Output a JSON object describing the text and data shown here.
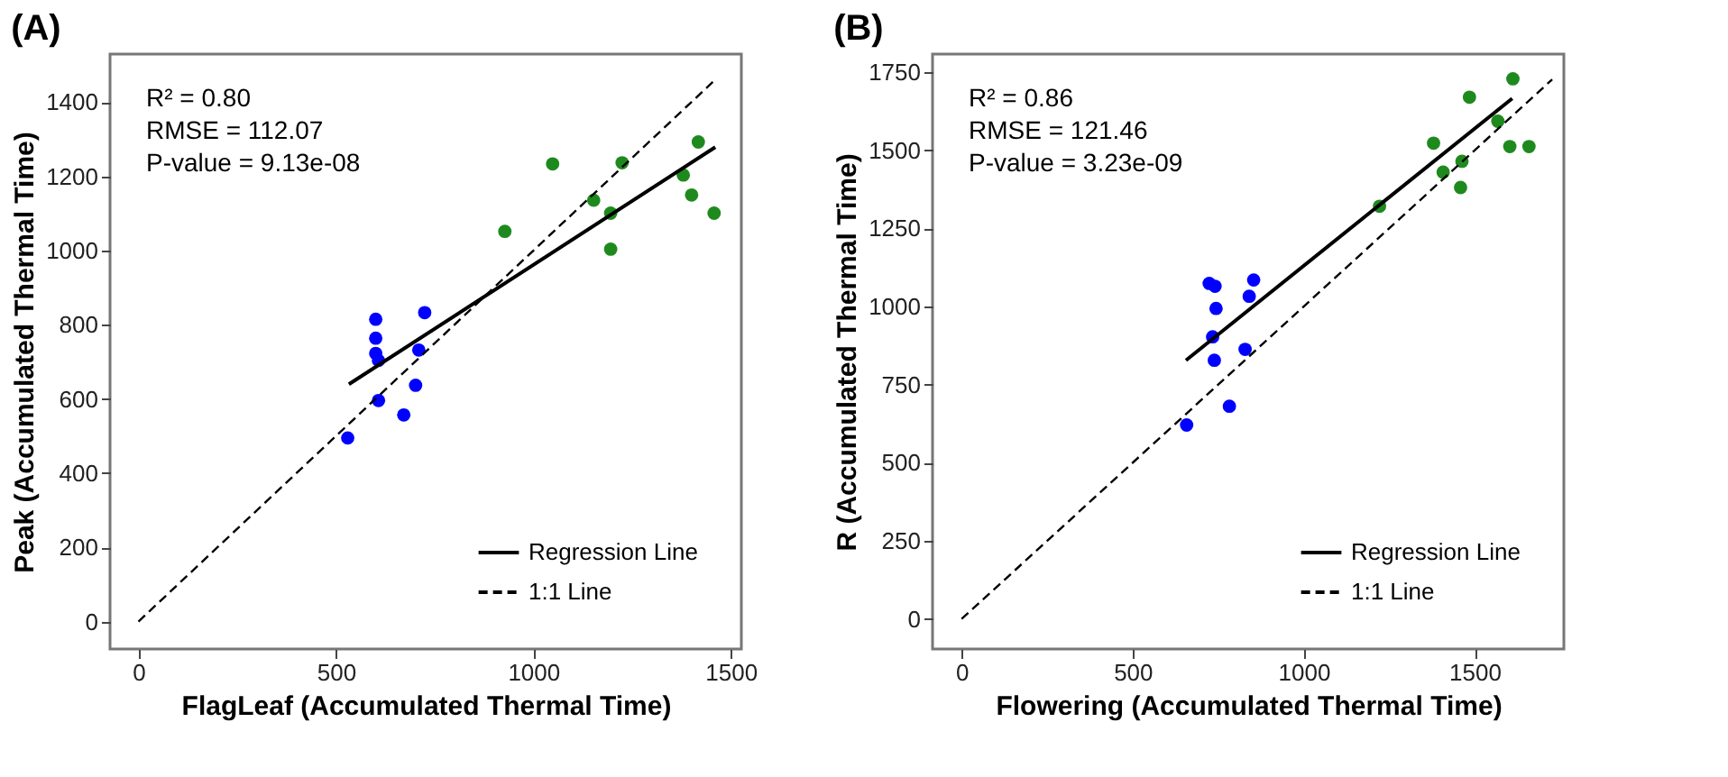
{
  "chart_data": [
    {
      "type": "scatter",
      "title": "(A)",
      "xlabel": "FlagLeaf (Accumulated Thermal Time)",
      "ylabel": "Peak (Accumulated Thermal Time)",
      "annotations": [
        "R² = 0.80",
        "RMSE = 112.07",
        "P-value = 9.13e-08"
      ],
      "xlim": [
        -72,
        1527
      ],
      "ylim": [
        -74,
        1530
      ],
      "xticks": [
        0,
        500,
        1000,
        1500
      ],
      "yticks": [
        0,
        200,
        400,
        600,
        800,
        1000,
        1200,
        1400
      ],
      "grid": false,
      "legend": "bottom right",
      "marker": "circle",
      "series": [
        {
          "color": "#0000ff",
          "x": [
            530,
            601,
            601,
            601,
            608,
            608,
            672,
            702,
            710,
            725
          ],
          "values": [
            495,
            815,
            764,
            723,
            704,
            596,
            557,
            637,
            732,
            833
          ]
        },
        {
          "color": "#1e8a1e",
          "x": [
            928,
            1049,
            1153,
            1196,
            1196,
            1225,
            1380,
            1401,
            1418,
            1458
          ],
          "values": [
            1052,
            1234,
            1136,
            1101,
            1004,
            1237,
            1204,
            1150,
            1293,
            1101
          ]
        },
        {
          "type": "line",
          "name": "Regression Line",
          "color": "#000000",
          "line_style": "solid",
          "marker": "none",
          "x": [
            533,
            1461
          ],
          "values": [
            640,
            1279
          ]
        },
        {
          "type": "line",
          "name": "1:1 Line",
          "color": "#000000",
          "line_style": "dashed",
          "marker": "none",
          "x": [
            0,
            1455
          ],
          "values": [
            0,
            1455
          ]
        }
      ]
    },
    {
      "type": "scatter",
      "title": "(B)",
      "xlabel": "Flowering (Accumulated Thermal Time)",
      "ylabel": "R (Accumulated Thermal Time)",
      "annotations": [
        "R² = 0.86",
        "RMSE = 121.46",
        "P-value = 3.23e-09"
      ],
      "xlim": [
        -85,
        1761
      ],
      "ylim": [
        -96,
        1808
      ],
      "xticks": [
        0,
        500,
        1000,
        1500
      ],
      "yticks": [
        0,
        250,
        500,
        750,
        1000,
        1250,
        1500,
        1750
      ],
      "grid": false,
      "legend": "bottom right",
      "marker": "circle",
      "series": [
        {
          "color": "#0000ff",
          "x": [
            658,
            724,
            741,
            744,
            734,
            739,
            783,
            829,
            841,
            854
          ],
          "values": [
            621,
            1074,
            1065,
            994,
            903,
            828,
            681,
            863,
            1033,
            1085
          ]
        },
        {
          "color": "#1e8a1e",
          "x": [
            1222,
            1380,
            1408,
            1459,
            1463,
            1485,
            1568,
            1603,
            1612,
            1659
          ],
          "values": [
            1321,
            1523,
            1430,
            1381,
            1465,
            1670,
            1593,
            1512,
            1729,
            1512
          ]
        },
        {
          "type": "line",
          "name": "Regression Line",
          "color": "#000000",
          "line_style": "solid",
          "marker": "none",
          "x": [
            656,
            1610
          ],
          "values": [
            828,
            1666
          ]
        },
        {
          "type": "line",
          "name": "1:1 Line",
          "color": "#000000",
          "line_style": "dashed",
          "marker": "none",
          "x": [
            0,
            1727
          ],
          "values": [
            0,
            1727
          ]
        }
      ]
    }
  ]
}
